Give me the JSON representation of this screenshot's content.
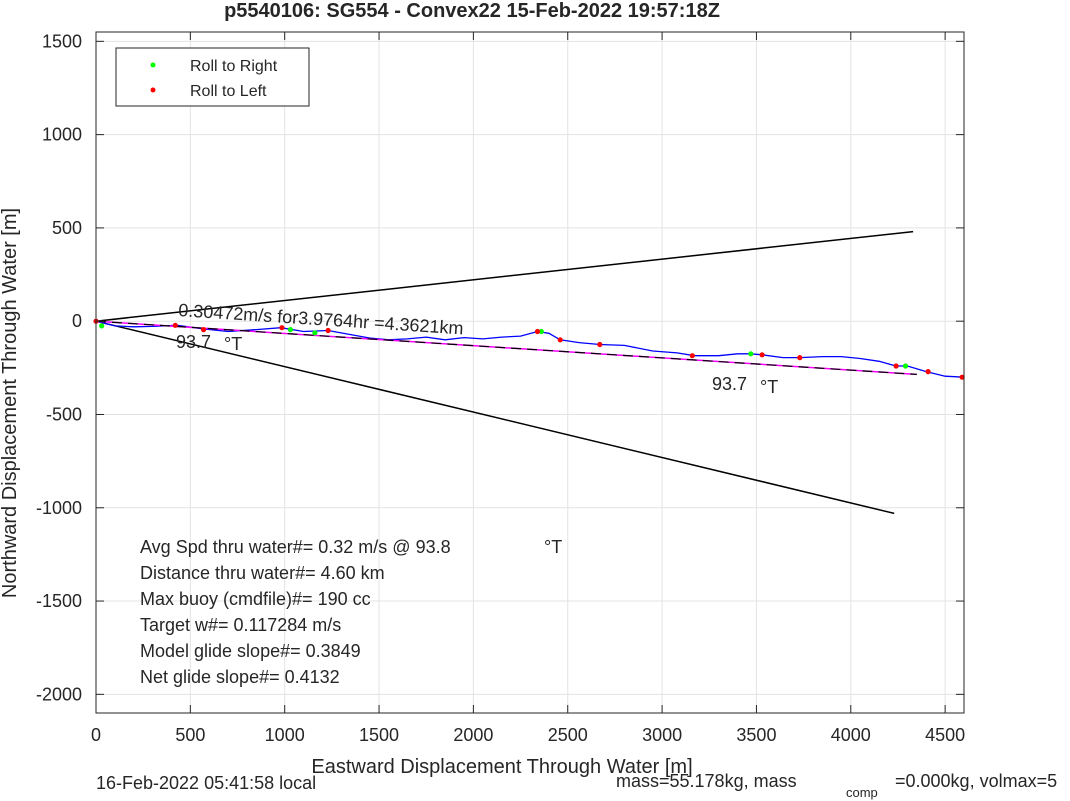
{
  "chart_data": {
    "type": "line",
    "title": "p5540106: SG554 - Convex22 15-Feb-2022 19:57:18Z",
    "xlabel": "Eastward Displacement Through Water [m]",
    "ylabel": "Northward Displacement Through Water [m]",
    "xlim": [
      0,
      4600
    ],
    "ylim": [
      -2100,
      1550
    ],
    "xticks": [
      0,
      500,
      1000,
      1500,
      2000,
      2500,
      3000,
      3500,
      4000,
      4500
    ],
    "yticks": [
      1500,
      1000,
      500,
      0,
      -500,
      -1000,
      -1500,
      -2000
    ],
    "grid": true,
    "legend_position": "top-left",
    "legend": [
      {
        "label": "Roll to Right",
        "color": "#00ff00"
      },
      {
        "label": "Roll to Left",
        "color": "#ff0000"
      }
    ],
    "series": [
      {
        "kind": "track",
        "color": "#0000ff",
        "x": [
          0,
          100,
          200,
          300,
          430,
          560,
          700,
          850,
          980,
          1100,
          1230,
          1350,
          1450,
          1550,
          1650,
          1750,
          1850,
          1950,
          2050,
          2150,
          2250,
          2340,
          2400,
          2460,
          2560,
          2670,
          2800,
          2950,
          3080,
          3170,
          3300,
          3400,
          3470,
          3530,
          3640,
          3730,
          3850,
          3950,
          4050,
          4150,
          4240,
          4300,
          4400,
          4500,
          4600
        ],
        "y": [
          0,
          -25,
          -30,
          -28,
          -22,
          -40,
          -55,
          -45,
          -35,
          -55,
          -50,
          -72,
          -90,
          -100,
          -95,
          -85,
          -100,
          -88,
          -95,
          -85,
          -80,
          -55,
          -65,
          -100,
          -115,
          -125,
          -130,
          -160,
          -170,
          -185,
          -185,
          -175,
          -175,
          -180,
          -195,
          -195,
          -190,
          -190,
          -200,
          -215,
          -240,
          -240,
          -270,
          -295,
          -300
        ]
      },
      {
        "kind": "heading-fit",
        "color": "#ff00ff",
        "x": [
          0,
          4350
        ],
        "y": [
          0,
          -285
        ]
      },
      {
        "kind": "heading-dashed",
        "color": "#000000",
        "x": [
          0,
          4350
        ],
        "y": [
          0,
          -285
        ]
      },
      {
        "kind": "cone-upper",
        "color": "#000000",
        "x": [
          0,
          4330
        ],
        "y": [
          0,
          480
        ]
      },
      {
        "kind": "cone-lower",
        "color": "#000000",
        "x": [
          0,
          4230
        ],
        "y": [
          0,
          -1030
        ]
      }
    ],
    "roll_right_points": {
      "color": "#00ff00",
      "x": [
        30,
        1030,
        1160,
        2360,
        3470,
        4290
      ],
      "y": [
        -25,
        -45,
        -62,
        -55,
        -175,
        -240
      ]
    },
    "roll_left_points": {
      "color": "#ff0000",
      "x": [
        0,
        420,
        570,
        985,
        1230,
        2340,
        2460,
        2670,
        3160,
        3530,
        3730,
        4240,
        4410,
        4590
      ],
      "y": [
        0,
        -22,
        -45,
        -35,
        -50,
        -55,
        -100,
        -125,
        -185,
        -180,
        -195,
        -240,
        -270,
        -300
      ]
    },
    "annotations": {
      "speed_line": "0.30472m/s for3.9764hr =4.3621km",
      "heading_left": "93.7",
      "heading_right": "93.7",
      "deg_unit": "°T",
      "stats": [
        "Avg Spd thru water#=  0.32 m/s @  93.8",
        "Distance thru water#=  4.60 km",
        "Max buoy (cmdfile)#= 190 cc",
        "Target w#= 0.117284 m/s",
        "Model glide slope#= 0.3849",
        "Net glide slope#= 0.4132"
      ],
      "stats_unit": "°T"
    },
    "footer": {
      "local_time": "16-Feb-2022 05:41:58 local",
      "mass_text": "mass=55.178kg, mass",
      "comp_sub": "comp",
      "mass_rest": "=0.000kg, volmax=5"
    }
  }
}
